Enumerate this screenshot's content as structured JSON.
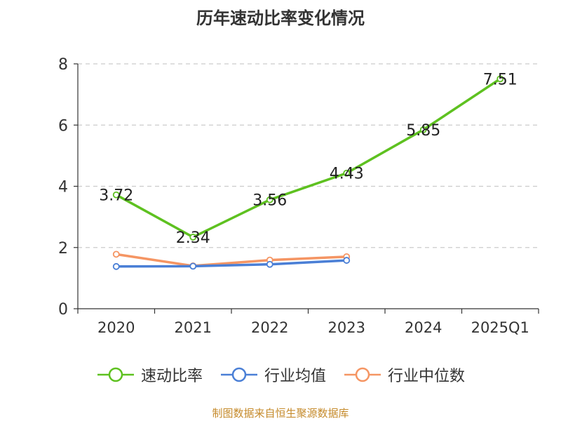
{
  "chart_data": {
    "type": "line",
    "title": "历年速动比率变化情况",
    "categories": [
      "2020",
      "2021",
      "2022",
      "2023",
      "2024",
      "2025Q1"
    ],
    "ylim": [
      0,
      8
    ],
    "yticks": [
      0,
      2,
      4,
      6,
      8
    ],
    "grid": true,
    "legend_position": "bottom",
    "series": [
      {
        "name": "速动比率",
        "color": "#5ec120",
        "values": [
          3.72,
          2.34,
          3.56,
          4.43,
          5.85,
          7.51
        ],
        "labels": [
          "3.72",
          "2.34",
          "3.56",
          "4.43",
          "5.85",
          "7.51"
        ]
      },
      {
        "name": "行业均值",
        "color": "#4a7fd6",
        "values": [
          1.38,
          1.39,
          1.45,
          1.58,
          null,
          null
        ]
      },
      {
        "name": "行业中位数",
        "color": "#f59563",
        "values": [
          1.78,
          1.4,
          1.59,
          1.7,
          null,
          null
        ]
      }
    ]
  },
  "source_note": "制图数据来自恒生聚源数据库"
}
